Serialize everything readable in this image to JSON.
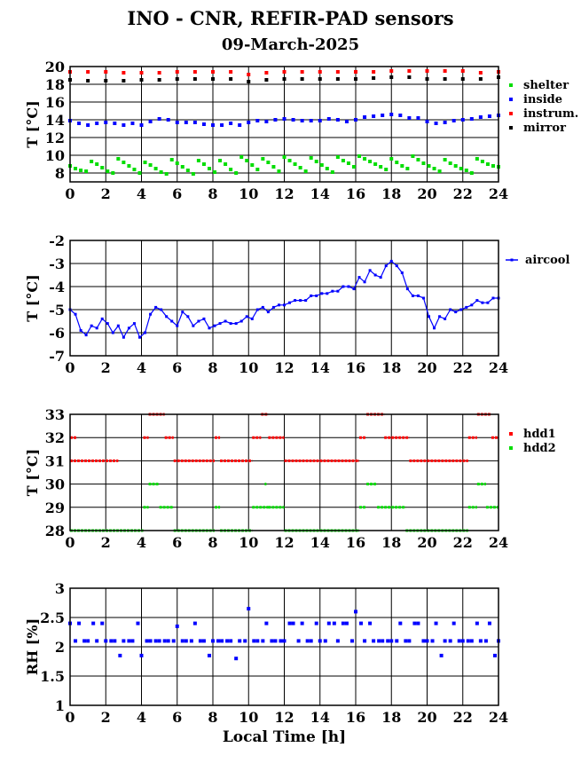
{
  "title": "INO - CNR, REFIR-PAD sensors",
  "subtitle": "09-March-2025",
  "x_axis_label": "Local Time [h]",
  "chart_data": [
    {
      "type": "scatter",
      "ylabel": "T [°C]",
      "xlim": [
        0,
        24
      ],
      "ylim": [
        7,
        20
      ],
      "xticks": [
        0,
        2,
        4,
        6,
        8,
        10,
        12,
        14,
        16,
        18,
        20,
        22,
        24
      ],
      "yticks": [
        8,
        10,
        12,
        14,
        16,
        18,
        20
      ],
      "grid": true,
      "legend": "right",
      "series": [
        {
          "name": "shelter",
          "color": "#00dd00",
          "x": [
            0,
            0.3,
            0.6,
            0.9,
            1.2,
            1.5,
            1.8,
            2.1,
            2.4,
            2.7,
            3.0,
            3.3,
            3.6,
            3.9,
            4.2,
            4.5,
            4.8,
            5.1,
            5.4,
            5.7,
            6.0,
            6.3,
            6.6,
            6.9,
            7.2,
            7.5,
            7.8,
            8.1,
            8.4,
            8.7,
            9.0,
            9.3,
            9.6,
            9.9,
            10.2,
            10.5,
            10.8,
            11.1,
            11.4,
            11.7,
            12.0,
            12.3,
            12.6,
            12.9,
            13.2,
            13.5,
            13.8,
            14.1,
            14.4,
            14.7,
            15.0,
            15.3,
            15.6,
            15.9,
            16.2,
            16.5,
            16.8,
            17.1,
            17.4,
            17.7,
            18.0,
            18.3,
            18.6,
            18.9,
            19.2,
            19.5,
            19.8,
            20.1,
            20.4,
            20.7,
            21.0,
            21.3,
            21.6,
            21.9,
            22.2,
            22.5,
            22.8,
            23.1,
            23.4,
            23.7,
            24.0
          ],
          "y": [
            8.8,
            8.5,
            8.3,
            8.2,
            9.3,
            9.0,
            8.6,
            8.2,
            8.0,
            9.6,
            9.2,
            8.8,
            8.4,
            8.0,
            9.2,
            8.9,
            8.5,
            8.1,
            7.9,
            9.5,
            9.1,
            8.7,
            8.3,
            7.9,
            9.4,
            9.0,
            8.5,
            8.1,
            9.4,
            9.0,
            8.4,
            8.0,
            9.8,
            9.4,
            8.9,
            8.4,
            9.6,
            9.2,
            8.7,
            8.2,
            9.8,
            9.4,
            9.0,
            8.6,
            8.2,
            9.7,
            9.3,
            8.9,
            8.5,
            8.1,
            9.8,
            9.4,
            9.1,
            8.7,
            9.9,
            9.6,
            9.3,
            9.0,
            8.7,
            8.4,
            9.6,
            9.2,
            8.8,
            8.5,
            9.9,
            9.5,
            9.1,
            8.8,
            8.5,
            8.2,
            9.5,
            9.1,
            8.8,
            8.5,
            8.3,
            8.0,
            9.6,
            9.3,
            9.0,
            8.8,
            8.7
          ]
        },
        {
          "name": "inside",
          "color": "#0000ff",
          "x": [
            0,
            0.5,
            1,
            1.5,
            2,
            2.5,
            3,
            3.5,
            4,
            4.5,
            5,
            5.5,
            6,
            6.5,
            7,
            7.5,
            8,
            8.5,
            9,
            9.5,
            10,
            10.5,
            11,
            11.5,
            12,
            12.5,
            13,
            13.5,
            14,
            14.5,
            15,
            15.5,
            16,
            16.5,
            17,
            17.5,
            18,
            18.5,
            19,
            19.5,
            20,
            20.5,
            21,
            21.5,
            22,
            22.5,
            23,
            23.5,
            24
          ],
          "y": [
            13.9,
            13.6,
            13.4,
            13.6,
            13.7,
            13.6,
            13.4,
            13.6,
            13.4,
            13.8,
            14.1,
            14.0,
            13.7,
            13.7,
            13.7,
            13.5,
            13.4,
            13.4,
            13.6,
            13.4,
            13.7,
            13.9,
            13.8,
            14.0,
            14.1,
            14.0,
            13.9,
            13.9,
            13.9,
            14.1,
            14.0,
            13.8,
            14.0,
            14.3,
            14.4,
            14.5,
            14.6,
            14.5,
            14.2,
            14.2,
            13.8,
            13.6,
            13.7,
            13.9,
            14.0,
            14.1,
            14.3,
            14.4,
            14.5
          ]
        },
        {
          "name": "instrum.",
          "color": "#ff0000",
          "x": [
            0,
            1,
            2,
            3,
            4,
            5,
            6,
            7,
            8,
            9,
            10,
            11,
            12,
            13,
            14,
            15,
            16,
            17,
            18,
            19,
            20,
            21,
            22,
            23,
            24
          ],
          "y": [
            19.4,
            19.4,
            19.4,
            19.3,
            19.3,
            19.3,
            19.4,
            19.4,
            19.4,
            19.4,
            19.1,
            19.3,
            19.4,
            19.4,
            19.4,
            19.4,
            19.4,
            19.4,
            19.5,
            19.5,
            19.5,
            19.5,
            19.5,
            19.3,
            19.4
          ]
        },
        {
          "name": "mirror",
          "color": "#000000",
          "x": [
            0,
            1,
            2,
            3,
            4,
            5,
            6,
            7,
            8,
            9,
            10,
            11,
            12,
            13,
            14,
            15,
            16,
            17,
            18,
            19,
            20,
            21,
            22,
            23,
            24
          ],
          "y": [
            18.5,
            18.4,
            18.4,
            18.4,
            18.5,
            18.5,
            18.6,
            18.6,
            18.6,
            18.6,
            18.3,
            18.5,
            18.6,
            18.6,
            18.6,
            18.6,
            18.6,
            18.7,
            18.8,
            18.8,
            18.6,
            18.6,
            18.6,
            18.6,
            18.8
          ]
        }
      ]
    },
    {
      "type": "line",
      "ylabel": "T [°C]",
      "xlim": [
        0,
        24
      ],
      "ylim": [
        -7,
        -2
      ],
      "xticks": [
        0,
        2,
        4,
        6,
        8,
        10,
        12,
        14,
        16,
        18,
        20,
        22,
        24
      ],
      "yticks": [
        -7,
        -6,
        -5,
        -4,
        -3,
        -2
      ],
      "grid": true,
      "legend": "right",
      "series": [
        {
          "name": "aircool",
          "color": "#0000ff",
          "x": [
            0,
            0.3,
            0.6,
            0.9,
            1.2,
            1.5,
            1.8,
            2.1,
            2.4,
            2.7,
            3.0,
            3.3,
            3.6,
            3.9,
            4.2,
            4.5,
            4.8,
            5.1,
            5.4,
            5.7,
            6.0,
            6.3,
            6.6,
            6.9,
            7.2,
            7.5,
            7.8,
            8.1,
            8.4,
            8.7,
            9.0,
            9.3,
            9.6,
            9.9,
            10.2,
            10.5,
            10.8,
            11.1,
            11.4,
            11.7,
            12.0,
            12.3,
            12.6,
            12.9,
            13.2,
            13.5,
            13.8,
            14.1,
            14.4,
            14.7,
            15.0,
            15.3,
            15.6,
            15.9,
            16.2,
            16.5,
            16.8,
            17.1,
            17.4,
            17.7,
            18.0,
            18.3,
            18.6,
            18.9,
            19.2,
            19.5,
            19.8,
            20.1,
            20.4,
            20.7,
            21.0,
            21.3,
            21.6,
            21.9,
            22.2,
            22.5,
            22.8,
            23.1,
            23.4,
            23.7,
            24.0
          ],
          "y": [
            -5.0,
            -5.2,
            -5.9,
            -6.1,
            -5.7,
            -5.8,
            -5.4,
            -5.6,
            -6.0,
            -5.7,
            -6.2,
            -5.8,
            -5.6,
            -6.2,
            -6.0,
            -5.2,
            -4.9,
            -5.0,
            -5.3,
            -5.5,
            -5.7,
            -5.1,
            -5.3,
            -5.7,
            -5.5,
            -5.4,
            -5.8,
            -5.7,
            -5.6,
            -5.5,
            -5.6,
            -5.6,
            -5.5,
            -5.3,
            -5.4,
            -5.0,
            -4.9,
            -5.1,
            -4.9,
            -4.8,
            -4.8,
            -4.7,
            -4.6,
            -4.6,
            -4.6,
            -4.4,
            -4.4,
            -4.3,
            -4.3,
            -4.2,
            -4.2,
            -4.0,
            -4.0,
            -4.1,
            -3.6,
            -3.8,
            -3.3,
            -3.5,
            -3.6,
            -3.1,
            -2.9,
            -3.1,
            -3.4,
            -4.1,
            -4.4,
            -4.4,
            -4.5,
            -5.3,
            -5.8,
            -5.3,
            -5.4,
            -5.0,
            -5.1,
            -5.0,
            -4.9,
            -4.8,
            -4.6,
            -4.7,
            -4.7,
            -4.5,
            -4.5
          ]
        }
      ]
    },
    {
      "type": "scatter",
      "ylabel": "T [°C]",
      "xlim": [
        0,
        24
      ],
      "ylim": [
        28,
        33
      ],
      "xticks": [
        0,
        2,
        4,
        6,
        8,
        10,
        12,
        14,
        16,
        18,
        20,
        22,
        24
      ],
      "yticks": [
        28,
        29,
        30,
        31,
        32,
        33
      ],
      "grid": true,
      "legend": "right",
      "series": [
        {
          "name": "hdd1",
          "color": "#ff0000",
          "segments": [
            [
              0,
              0.4,
              32
            ],
            [
              0,
              2.7,
              31
            ],
            [
              4.1,
              4.4,
              32
            ],
            [
              4.4,
              5.3,
              33
            ],
            [
              5.3,
              5.8,
              32
            ],
            [
              5.8,
              8.1,
              31
            ],
            [
              8.1,
              8.4,
              32
            ],
            [
              8.4,
              10.2,
              31
            ],
            [
              10.2,
              10.7,
              32
            ],
            [
              10.7,
              11.1,
              33
            ],
            [
              11.1,
              12.0,
              32
            ],
            [
              12.0,
              16.2,
              31
            ],
            [
              16.2,
              16.6,
              32
            ],
            [
              16.6,
              17.6,
              33
            ],
            [
              17.6,
              19.0,
              32
            ],
            [
              19.0,
              22.3,
              31
            ],
            [
              22.3,
              22.8,
              32
            ],
            [
              22.8,
              23.6,
              33
            ],
            [
              23.6,
              24,
              32
            ]
          ]
        },
        {
          "name": "hdd2",
          "color": "#00dd00",
          "segments": [
            [
              0,
              4.1,
              28
            ],
            [
              4.1,
              4.4,
              29
            ],
            [
              4.4,
              5.0,
              30
            ],
            [
              5.0,
              5.8,
              29
            ],
            [
              5.8,
              8.1,
              28
            ],
            [
              8.1,
              8.4,
              29
            ],
            [
              8.4,
              10.2,
              28
            ],
            [
              10.2,
              11.1,
              29
            ],
            [
              10.9,
              11.0,
              30
            ],
            [
              11.1,
              12.0,
              29
            ],
            [
              12.0,
              16.2,
              28
            ],
            [
              16.2,
              16.6,
              29
            ],
            [
              16.6,
              17.2,
              30
            ],
            [
              17.2,
              18.8,
              29
            ],
            [
              18.8,
              22.3,
              28
            ],
            [
              22.3,
              22.8,
              29
            ],
            [
              22.8,
              23.3,
              30
            ],
            [
              23.3,
              24,
              29
            ]
          ]
        }
      ]
    },
    {
      "type": "scatter",
      "ylabel": "RH [%]",
      "xlabel": "Local Time [h]",
      "xlim": [
        0,
        24
      ],
      "ylim": [
        1,
        3
      ],
      "xticks": [
        0,
        2,
        4,
        6,
        8,
        10,
        12,
        14,
        16,
        18,
        20,
        22,
        24
      ],
      "yticks": [
        1,
        1.5,
        2,
        2.5,
        3
      ],
      "grid": true,
      "series": [
        {
          "name": "",
          "color": "#0000ff",
          "x": [
            0,
            0.3,
            0.5,
            0.8,
            1.0,
            1.3,
            1.5,
            1.8,
            2.0,
            2.3,
            2.5,
            2.8,
            3.0,
            3.3,
            3.5,
            3.8,
            4.0,
            4.3,
            4.5,
            4.8,
            5.0,
            5.3,
            5.5,
            5.8,
            6.0,
            6.3,
            6.5,
            6.8,
            7.0,
            7.3,
            7.5,
            7.8,
            8.0,
            8.3,
            8.5,
            8.8,
            9.0,
            9.3,
            9.5,
            9.8,
            10.0,
            10.3,
            10.5,
            10.8,
            11.0,
            11.3,
            11.5,
            11.8,
            12.0,
            12.3,
            12.5,
            12.8,
            13.0,
            13.3,
            13.5,
            13.8,
            14.0,
            14.3,
            14.5,
            14.8,
            15.0,
            15.3,
            15.5,
            15.8,
            16.0,
            16.3,
            16.5,
            16.8,
            17.0,
            17.3,
            17.5,
            17.8,
            18.0,
            18.3,
            18.5,
            18.8,
            19.0,
            19.3,
            19.5,
            19.8,
            20.0,
            20.3,
            20.5,
            20.8,
            21.0,
            21.3,
            21.5,
            21.8,
            22.0,
            22.3,
            22.5,
            22.8,
            23.0,
            23.3,
            23.5,
            23.8,
            24.0
          ],
          "y": [
            2.4,
            2.1,
            2.4,
            2.1,
            2.1,
            2.4,
            2.1,
            2.4,
            2.1,
            2.1,
            2.1,
            1.85,
            2.1,
            2.1,
            2.1,
            2.4,
            1.85,
            2.1,
            2.1,
            2.1,
            2.1,
            2.1,
            2.1,
            2.1,
            2.35,
            2.1,
            2.1,
            2.1,
            2.4,
            2.1,
            2.1,
            1.85,
            2.1,
            2.1,
            2.1,
            2.1,
            2.1,
            1.8,
            2.1,
            2.1,
            2.65,
            2.1,
            2.1,
            2.1,
            2.4,
            2.1,
            2.1,
            2.1,
            2.1,
            2.4,
            2.4,
            2.1,
            2.4,
            2.1,
            2.1,
            2.4,
            2.1,
            2.1,
            2.4,
            2.4,
            2.1,
            2.4,
            2.4,
            2.1,
            2.6,
            2.4,
            2.1,
            2.4,
            2.1,
            2.1,
            2.1,
            2.1,
            2.1,
            2.1,
            2.4,
            2.1,
            2.1,
            2.4,
            2.4,
            2.1,
            2.1,
            2.1,
            2.4,
            1.85,
            2.1,
            2.1,
            2.4,
            2.1,
            2.1,
            2.1,
            2.1,
            2.4,
            2.1,
            2.1,
            2.4,
            1.85,
            2.1
          ]
        }
      ]
    }
  ]
}
